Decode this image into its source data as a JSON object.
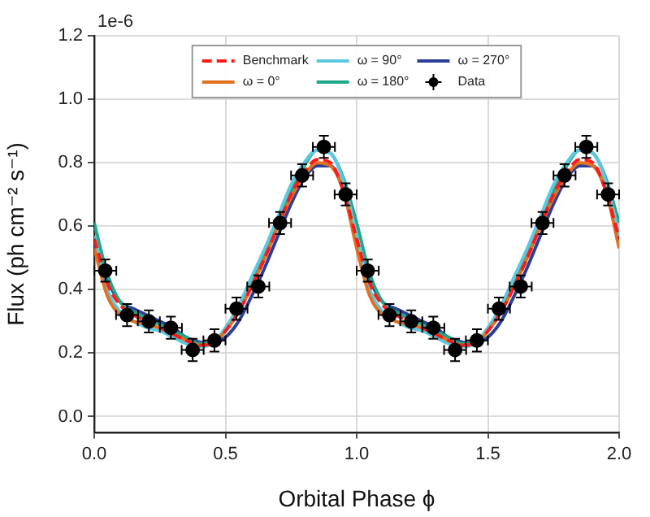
{
  "chart_data": {
    "type": "line",
    "xlabel": "Orbital Phase ϕ",
    "ylabel": "Flux (ph cm⁻² s⁻¹)",
    "annotations": [
      "1e-6"
    ],
    "xlim": [
      0,
      2
    ],
    "ylim": [
      -0.05,
      1.2
    ],
    "xticks": [
      {
        "value": 0,
        "label": "0.0"
      },
      {
        "value": 0.5,
        "label": "0.5"
      },
      {
        "value": 1,
        "label": "1.0"
      },
      {
        "value": 1.5,
        "label": "1.5"
      },
      {
        "value": 2,
        "label": "2.0"
      }
    ],
    "yticks": [
      {
        "value": 0,
        "label": "0.0"
      },
      {
        "value": 0.2,
        "label": "0.2"
      },
      {
        "value": 0.4,
        "label": "0.4"
      },
      {
        "value": 0.6,
        "label": "0.6"
      },
      {
        "value": 0.8,
        "label": "0.8"
      },
      {
        "value": 1,
        "label": "1.0"
      },
      {
        "value": 1.2,
        "label": "1.2"
      }
    ],
    "grid": true,
    "legend": "top",
    "x": [
      0,
      0.05,
      0.1,
      0.15,
      0.2,
      0.25,
      0.3,
      0.35,
      0.4,
      0.45,
      0.5,
      0.55,
      0.6,
      0.65,
      0.7,
      0.75,
      0.8,
      0.85,
      0.9,
      0.95,
      1,
      1.05,
      1.1,
      1.15,
      1.2,
      1.25,
      1.3,
      1.35,
      1.4,
      1.45,
      1.5,
      1.55,
      1.6,
      1.65,
      1.7,
      1.75,
      1.8,
      1.85,
      1.9,
      1.95,
      2
    ],
    "series": [
      {
        "name": "Benchmark",
        "color": "#ff1a1a",
        "line_style": "dashed",
        "values": [
          0.56,
          0.42,
          0.35,
          0.32,
          0.3,
          0.28,
          0.26,
          0.24,
          0.225,
          0.23,
          0.27,
          0.33,
          0.41,
          0.5,
          0.6,
          0.7,
          0.77,
          0.81,
          0.8,
          0.71,
          0.56,
          0.42,
          0.35,
          0.32,
          0.3,
          0.28,
          0.26,
          0.24,
          0.225,
          0.23,
          0.27,
          0.33,
          0.41,
          0.5,
          0.6,
          0.7,
          0.77,
          0.81,
          0.8,
          0.71,
          0.56
        ]
      },
      {
        "name": "ω = 0°",
        "color": "#e0711f",
        "values": [
          0.53,
          0.38,
          0.32,
          0.3,
          0.29,
          0.28,
          0.26,
          0.24,
          0.225,
          0.23,
          0.27,
          0.33,
          0.41,
          0.5,
          0.6,
          0.69,
          0.76,
          0.8,
          0.79,
          0.71,
          0.53,
          0.38,
          0.32,
          0.3,
          0.29,
          0.28,
          0.26,
          0.24,
          0.225,
          0.23,
          0.27,
          0.33,
          0.41,
          0.5,
          0.6,
          0.69,
          0.76,
          0.8,
          0.79,
          0.71,
          0.53
        ]
      },
      {
        "name": "ω = 90°",
        "color": "#5cc8e0",
        "values": [
          0.57,
          0.4,
          0.33,
          0.3,
          0.28,
          0.27,
          0.25,
          0.23,
          0.22,
          0.23,
          0.28,
          0.35,
          0.44,
          0.53,
          0.63,
          0.73,
          0.8,
          0.84,
          0.83,
          0.74,
          0.57,
          0.4,
          0.33,
          0.3,
          0.28,
          0.27,
          0.25,
          0.23,
          0.22,
          0.23,
          0.28,
          0.35,
          0.44,
          0.53,
          0.63,
          0.73,
          0.8,
          0.84,
          0.83,
          0.74,
          0.57
        ]
      },
      {
        "name": "ω = 180°",
        "color": "#1fa88a",
        "values": [
          0.61,
          0.45,
          0.36,
          0.33,
          0.31,
          0.29,
          0.27,
          0.25,
          0.23,
          0.23,
          0.27,
          0.33,
          0.42,
          0.51,
          0.61,
          0.71,
          0.79,
          0.84,
          0.83,
          0.75,
          0.61,
          0.45,
          0.36,
          0.33,
          0.31,
          0.29,
          0.27,
          0.25,
          0.23,
          0.23,
          0.27,
          0.33,
          0.42,
          0.51,
          0.61,
          0.71,
          0.79,
          0.84,
          0.83,
          0.75,
          0.61
        ]
      },
      {
        "name": "ω = 270°",
        "color": "#2b3f99",
        "values": [
          0.55,
          0.43,
          0.36,
          0.34,
          0.32,
          0.3,
          0.28,
          0.25,
          0.235,
          0.23,
          0.25,
          0.3,
          0.38,
          0.47,
          0.57,
          0.67,
          0.75,
          0.79,
          0.79,
          0.71,
          0.55,
          0.43,
          0.36,
          0.34,
          0.32,
          0.3,
          0.28,
          0.25,
          0.235,
          0.23,
          0.25,
          0.3,
          0.38,
          0.47,
          0.57,
          0.67,
          0.75,
          0.79,
          0.79,
          0.71,
          0.55
        ]
      },
      {
        "name": "Data",
        "type": "scatter",
        "color": "#000000",
        "marker": "circle",
        "x": [
          0.042,
          0.125,
          0.208,
          0.292,
          0.375,
          0.458,
          0.542,
          0.625,
          0.708,
          0.792,
          0.875,
          0.958,
          1.042,
          1.125,
          1.208,
          1.292,
          1.375,
          1.458,
          1.542,
          1.625,
          1.708,
          1.792,
          1.875,
          1.958
        ],
        "values": [
          0.46,
          0.32,
          0.3,
          0.28,
          0.21,
          0.24,
          0.34,
          0.41,
          0.61,
          0.76,
          0.85,
          0.7,
          0.46,
          0.32,
          0.3,
          0.28,
          0.21,
          0.24,
          0.34,
          0.41,
          0.61,
          0.76,
          0.85,
          0.7
        ],
        "errors": [
          0.035,
          0.035,
          0.035,
          0.035,
          0.035,
          0.035,
          0.035,
          0.035,
          0.035,
          0.035,
          0.035,
          0.035,
          0.035,
          0.035,
          0.035,
          0.035,
          0.035,
          0.035,
          0.035,
          0.035,
          0.035,
          0.035,
          0.035,
          0.035
        ],
        "xerrors": [
          0.042,
          0.042,
          0.042,
          0.042,
          0.042,
          0.042,
          0.042,
          0.042,
          0.042,
          0.042,
          0.042,
          0.042,
          0.042,
          0.042,
          0.042,
          0.042,
          0.042,
          0.042,
          0.042,
          0.042,
          0.042,
          0.042,
          0.042,
          0.042
        ]
      }
    ]
  }
}
